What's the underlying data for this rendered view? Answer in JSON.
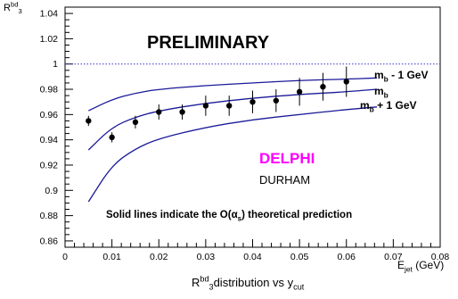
{
  "chart_data": {
    "type": "scatter",
    "title": "R3bd distribution vs ycut",
    "title_parts": {
      "main": "R",
      "sup": "bd",
      "sub": "3",
      "mid": "distribution vs y",
      "sub2": "cut"
    },
    "ylabel": "R3bd",
    "ylabel_parts": {
      "main": "R",
      "sup": "bd",
      "sub": "3"
    },
    "xaxis_label": "E_jet (GeV)",
    "xaxis_parts": {
      "main": "E",
      "sub": "jet",
      "unit": " (GeV)"
    },
    "xlim": [
      0,
      0.08
    ],
    "ylim": [
      0.855,
      1.045
    ],
    "x_ticks": [
      0,
      0.01,
      0.02,
      0.03,
      0.04,
      0.05,
      0.06,
      0.07,
      0.08
    ],
    "y_ticks": [
      0.86,
      0.88,
      0.9,
      0.92,
      0.94,
      0.96,
      0.98,
      1.0,
      1.02,
      1.04
    ],
    "x_tick_labels": [
      "0",
      "0.01",
      "0.02",
      "0.03",
      "0.04",
      "0.05",
      "0.06",
      "0.07",
      "0.08"
    ],
    "y_tick_labels": [
      "0.86",
      "0.88",
      "0.9",
      "0.92",
      "0.94",
      "0.96",
      "0.98",
      "1",
      "1.02",
      "1.04"
    ],
    "reference_line": {
      "y": 1.0,
      "style": "dotted",
      "color": "#3333cc"
    },
    "points": {
      "x": [
        0.005,
        0.01,
        0.015,
        0.02,
        0.025,
        0.03,
        0.035,
        0.04,
        0.045,
        0.05,
        0.055,
        0.06
      ],
      "y": [
        0.955,
        0.942,
        0.954,
        0.962,
        0.962,
        0.967,
        0.967,
        0.97,
        0.971,
        0.978,
        0.982,
        0.986
      ],
      "err": [
        0.004,
        0.004,
        0.005,
        0.006,
        0.006,
        0.008,
        0.008,
        0.009,
        0.009,
        0.011,
        0.011,
        0.012
      ]
    },
    "curves": [
      {
        "name": "m_b - 1 GeV",
        "label_main": "m",
        "label_sub": "b",
        "label_rest": " - 1 GeV",
        "color": "#1a1a99",
        "x": [
          0.005,
          0.01,
          0.015,
          0.02,
          0.03,
          0.04,
          0.05,
          0.06,
          0.0665
        ],
        "y": [
          0.963,
          0.972,
          0.977,
          0.98,
          0.983,
          0.985,
          0.987,
          0.988,
          0.989
        ]
      },
      {
        "name": "m_b",
        "label_main": "m",
        "label_sub": "b",
        "label_rest": "",
        "color": "#1a1a99",
        "x": [
          0.005,
          0.01,
          0.015,
          0.02,
          0.03,
          0.04,
          0.05,
          0.06,
          0.0665
        ],
        "y": [
          0.932,
          0.95,
          0.958,
          0.963,
          0.969,
          0.973,
          0.976,
          0.978,
          0.98
        ]
      },
      {
        "name": "m_b + 1 GeV",
        "label_main": "m",
        "label_sub": "b",
        "label_rest": " + 1 GeV",
        "color": "#1a1a99",
        "x": [
          0.005,
          0.01,
          0.015,
          0.02,
          0.03,
          0.04,
          0.05,
          0.06,
          0.0665
        ],
        "y": [
          0.891,
          0.92,
          0.933,
          0.941,
          0.95,
          0.956,
          0.96,
          0.964,
          0.966
        ]
      }
    ],
    "grid": false,
    "legend": "right",
    "annotations": {
      "preliminary": "PRELIMINARY",
      "experiment": "DELPHI",
      "algorithm": "DURHAM",
      "note": "Solid lines indicate the O(αs) theoretical prediction",
      "note_parts": {
        "pre": "Solid lines indicate the O(",
        "alpha": "α",
        "alpha_sub": "s",
        "post": ") theoretical prediction"
      }
    },
    "colors": {
      "experiment": "#ff00ff",
      "curves": "#1a1a99",
      "points": "#000000"
    }
  }
}
